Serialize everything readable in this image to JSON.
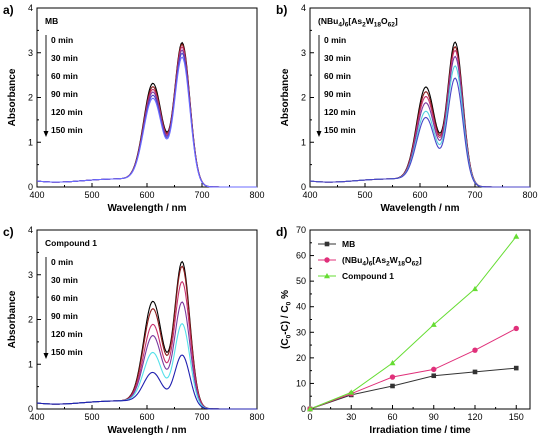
{
  "chart_data": [
    {
      "panel": "a)",
      "type": "line",
      "xlabel": "Wavelength / nm",
      "ylabel": "Absorbance",
      "xlim": [
        400,
        800
      ],
      "ylim": [
        0,
        4
      ],
      "xticks": [
        400,
        500,
        600,
        700,
        800
      ],
      "yticks": [
        0,
        1,
        2,
        3,
        4
      ],
      "label": "MB",
      "time_labels": [
        "0 min",
        "30 min",
        "60 min",
        "90 min",
        "120 min",
        "150 min"
      ],
      "series": [
        {
          "color": "#000000",
          "shoulder": 2.7,
          "peak": 3.6
        },
        {
          "color": "#8b1a1a",
          "shoulder": 2.62,
          "peak": 3.55
        },
        {
          "color": "#c8326e",
          "shoulder": 2.55,
          "peak": 3.48
        },
        {
          "color": "#7a3aa0",
          "shoulder": 2.48,
          "peak": 3.4
        },
        {
          "color": "#4b46c8",
          "shoulder": 2.4,
          "peak": 3.32
        },
        {
          "color": "#6b6bff",
          "shoulder": 2.32,
          "peak": 3.22
        }
      ]
    },
    {
      "panel": "b)",
      "type": "line",
      "xlabel": "Wavelength / nm",
      "ylabel": "Absorbance",
      "xlim": [
        400,
        800
      ],
      "ylim": [
        0,
        4
      ],
      "xticks": [
        400,
        500,
        600,
        700,
        800
      ],
      "yticks": [
        0,
        1,
        2,
        3,
        4
      ],
      "label": "(NBu4)6[As2W18O62]",
      "time_labels": [
        "0 min",
        "30 min",
        "60 min",
        "90 min",
        "120 min",
        "150 min"
      ],
      "series": [
        {
          "color": "#000000",
          "shoulder": 2.62,
          "peak": 3.6
        },
        {
          "color": "#8b1a1a",
          "shoulder": 2.5,
          "peak": 3.48
        },
        {
          "color": "#c8326e",
          "shoulder": 2.38,
          "peak": 3.38
        },
        {
          "color": "#7a3aa0",
          "shoulder": 2.22,
          "peak": 3.22
        },
        {
          "color": "#55d0e0",
          "shoulder": 2.0,
          "peak": 2.98
        },
        {
          "color": "#4b46c8",
          "shoulder": 1.82,
          "peak": 2.68
        }
      ]
    },
    {
      "panel": "c)",
      "type": "line",
      "xlabel": "Wavelength / nm",
      "ylabel": "Absorbance",
      "xlim": [
        400,
        800
      ],
      "ylim": [
        0,
        4
      ],
      "xticks": [
        400,
        500,
        600,
        700,
        800
      ],
      "yticks": [
        0,
        1,
        2,
        3,
        4
      ],
      "label": "Compound 1",
      "time_labels": [
        "0 min",
        "30 min",
        "60 min",
        "90 min",
        "120 min",
        "150 min"
      ],
      "series": [
        {
          "color": "#000000",
          "shoulder": 2.8,
          "peak": 3.68
        },
        {
          "color": "#8b1a1a",
          "shoulder": 2.62,
          "peak": 3.55
        },
        {
          "color": "#c8326e",
          "shoulder": 2.22,
          "peak": 3.15
        },
        {
          "color": "#7a3aa0",
          "shoulder": 1.9,
          "peak": 2.65
        },
        {
          "color": "#55e0ea",
          "shoulder": 1.45,
          "peak": 2.1
        },
        {
          "color": "#2020b0",
          "shoulder": 0.9,
          "peak": 1.32
        }
      ]
    },
    {
      "panel": "d)",
      "type": "line",
      "xlabel": "Irradiation time / time",
      "ylabel": "(C0-C) / C0 %",
      "xlim": [
        0,
        160
      ],
      "ylim": [
        0,
        70
      ],
      "xticks": [
        0,
        30,
        60,
        90,
        120,
        150
      ],
      "yticks": [
        0,
        10,
        20,
        30,
        40,
        50,
        60,
        70
      ],
      "x": [
        0,
        30,
        60,
        90,
        120,
        150
      ],
      "legend_position": "top-left",
      "series": [
        {
          "name": "MB",
          "color": "#333333",
          "marker": "square",
          "values": [
            0,
            5.5,
            9,
            13,
            14.5,
            16
          ]
        },
        {
          "name": "(NBu4)6[As2W18O62]",
          "color": "#e0307a",
          "marker": "circle",
          "values": [
            0,
            6,
            12.5,
            15.5,
            23,
            31.5
          ]
        },
        {
          "name": "Compound 1",
          "color": "#66dd33",
          "marker": "triangle",
          "values": [
            0,
            6.5,
            18,
            33,
            47,
            67.5
          ]
        }
      ]
    }
  ]
}
